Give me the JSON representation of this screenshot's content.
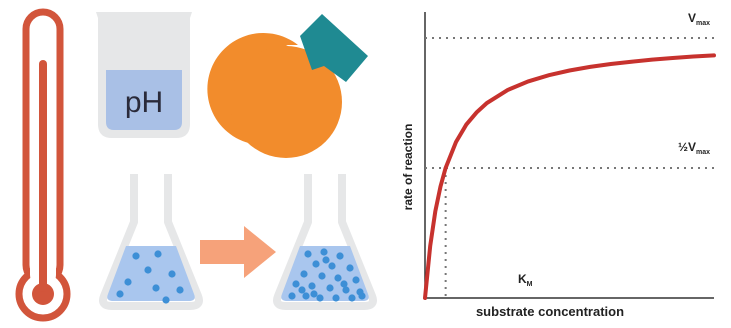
{
  "colors": {
    "thermometer": "#d2553b",
    "beaker_glass": "#e6e7e8",
    "ph_liquid": "#a9c0e6",
    "enzyme_body": "#f28c2c",
    "substrate": "#1f8a92",
    "flask_liquid": "#a9c6ee",
    "particle": "#3d8fd6",
    "arrow": "#f6a27a",
    "curve": "#c7322e",
    "axis": "#333333",
    "guide": "#777777"
  },
  "icons": {
    "thermometer": "thermometer-icon",
    "beaker": "beaker-icon",
    "enzyme": "enzyme-icon",
    "flask_before": "flask-icon",
    "flask_after": "flask-icon",
    "arrow": "right-arrow-icon"
  },
  "beaker": {
    "label": "pH"
  },
  "flasks": {
    "before_particles": 9,
    "after_particles": 25
  },
  "chart_data": {
    "type": "line",
    "title": "",
    "xlabel": "substrate concentration",
    "ylabel": "rate of reaction",
    "vmax_label": "V",
    "vmax_sub": "max",
    "half_vmax_prefix": "½V",
    "half_vmax_sub": "max",
    "km_label": "K",
    "km_sub": "M",
    "vmax": 1.0,
    "km": 1.0,
    "xlim": [
      0,
      14
    ],
    "ylim": [
      0,
      1.1
    ],
    "grid": false,
    "legend": "none",
    "series": [
      {
        "x": [
          0,
          0.25,
          0.5,
          0.75,
          1,
          1.5,
          2,
          2.5,
          3,
          4,
          5,
          6,
          7,
          8,
          9,
          10,
          11,
          12,
          13,
          14
        ],
        "values": [
          0,
          0.2,
          0.333,
          0.429,
          0.5,
          0.6,
          0.667,
          0.714,
          0.75,
          0.8,
          0.833,
          0.857,
          0.875,
          0.889,
          0.9,
          0.909,
          0.917,
          0.923,
          0.929,
          0.933
        ]
      }
    ]
  }
}
